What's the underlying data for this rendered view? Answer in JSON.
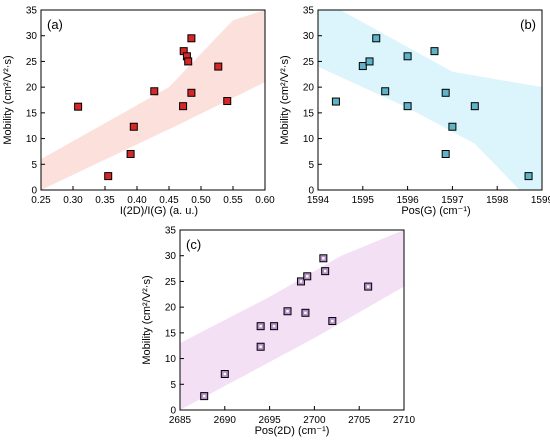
{
  "chart_data": [
    {
      "type": "scatter",
      "panel_label": "(a)",
      "xlabel": "I(2D)/I(G) (a. u.)",
      "ylabel": "Mobility (cm²/V²·s)",
      "xlim": [
        0.25,
        0.6
      ],
      "ylim": [
        0,
        35
      ],
      "xticks": [
        "0.25",
        "0.30",
        "0.35",
        "0.40",
        "0.45",
        "0.50",
        "0.55",
        "0.60"
      ],
      "yticks": [
        "0",
        "5",
        "10",
        "15",
        "20",
        "25",
        "30",
        "35"
      ],
      "points": [
        {
          "x": 0.308,
          "y": 16.2
        },
        {
          "x": 0.355,
          "y": 2.7
        },
        {
          "x": 0.39,
          "y": 7.0
        },
        {
          "x": 0.395,
          "y": 12.3
        },
        {
          "x": 0.427,
          "y": 19.2
        },
        {
          "x": 0.472,
          "y": 16.3
        },
        {
          "x": 0.473,
          "y": 27.0
        },
        {
          "x": 0.478,
          "y": 26.0
        },
        {
          "x": 0.48,
          "y": 25.0
        },
        {
          "x": 0.485,
          "y": 29.5
        },
        {
          "x": 0.485,
          "y": 18.9
        },
        {
          "x": 0.527,
          "y": 24.0
        },
        {
          "x": 0.541,
          "y": 17.3
        }
      ],
      "band_upper": [
        [
          0.25,
          6.0
        ],
        [
          0.45,
          20.0
        ],
        [
          0.55,
          33.0
        ],
        [
          0.6,
          35.0
        ]
      ],
      "band_lower": [
        [
          0.25,
          0.0
        ],
        [
          0.47,
          13.0
        ],
        [
          0.6,
          21.0
        ]
      ],
      "marker_color": "#d62728",
      "band_color": "#fbe0dc"
    },
    {
      "type": "scatter",
      "panel_label": "(b)",
      "xlabel": "Pos(G) (cm⁻¹)",
      "ylabel": "Mobility (cm²/V²·s)",
      "xlim": [
        1594,
        1599
      ],
      "ylim": [
        0,
        35
      ],
      "xticks": [
        "1594",
        "1595",
        "1596",
        "1597",
        "1598",
        "1599"
      ],
      "yticks": [
        "0",
        "5",
        "10",
        "15",
        "20",
        "25",
        "30",
        "35"
      ],
      "points": [
        {
          "x": 1594.4,
          "y": 17.2
        },
        {
          "x": 1595.0,
          "y": 24.1
        },
        {
          "x": 1595.15,
          "y": 25.0
        },
        {
          "x": 1595.3,
          "y": 29.5
        },
        {
          "x": 1595.5,
          "y": 19.2
        },
        {
          "x": 1596.0,
          "y": 26.0
        },
        {
          "x": 1596.0,
          "y": 16.3
        },
        {
          "x": 1596.6,
          "y": 27.0
        },
        {
          "x": 1596.85,
          "y": 18.9
        },
        {
          "x": 1596.85,
          "y": 7.0
        },
        {
          "x": 1597.0,
          "y": 12.3
        },
        {
          "x": 1597.5,
          "y": 16.3
        },
        {
          "x": 1598.7,
          "y": 2.7
        }
      ],
      "band_upper": [
        [
          1594,
          35.0
        ],
        [
          1594.5,
          35.0
        ],
        [
          1597.0,
          23.0
        ],
        [
          1599,
          20.0
        ]
      ],
      "band_lower": [
        [
          1594,
          24.0
        ],
        [
          1596.0,
          16.0
        ],
        [
          1597.5,
          9.0
        ],
        [
          1598.5,
          0.0
        ],
        [
          1599,
          0.0
        ]
      ],
      "marker_color": "#5fb3c8",
      "band_color": "#dcf4fb"
    },
    {
      "type": "scatter",
      "panel_label": "(c)",
      "xlabel": "Pos(2D) (cm⁻¹)",
      "ylabel": "Mobility (cm²/V²·s)",
      "xlim": [
        2685,
        2710
      ],
      "ylim": [
        0,
        35
      ],
      "xticks": [
        "2685",
        "2690",
        "2695",
        "2700",
        "2705",
        "2710"
      ],
      "yticks": [
        "0",
        "5",
        "10",
        "15",
        "20",
        "25",
        "30",
        "35"
      ],
      "points": [
        {
          "x": 2687.7,
          "y": 2.7
        },
        {
          "x": 2690.0,
          "y": 7.0
        },
        {
          "x": 2694.0,
          "y": 12.3
        },
        {
          "x": 2694.0,
          "y": 16.3
        },
        {
          "x": 2695.5,
          "y": 16.3
        },
        {
          "x": 2697.0,
          "y": 19.2
        },
        {
          "x": 2698.5,
          "y": 25.0
        },
        {
          "x": 2699.0,
          "y": 18.9
        },
        {
          "x": 2699.2,
          "y": 26.0
        },
        {
          "x": 2701.0,
          "y": 29.5
        },
        {
          "x": 2701.2,
          "y": 27.0
        },
        {
          "x": 2702.0,
          "y": 17.3
        },
        {
          "x": 2706.0,
          "y": 24.0
        }
      ],
      "band_upper": [
        [
          2685,
          13.0
        ],
        [
          2695,
          22.0
        ],
        [
          2703,
          30.0
        ],
        [
          2710,
          35.0
        ]
      ],
      "band_lower": [
        [
          2685,
          0.0
        ],
        [
          2700,
          14.0
        ],
        [
          2710,
          24.0
        ]
      ],
      "marker_color": "#b48fc8",
      "band_color": "#f3e0f5"
    }
  ]
}
